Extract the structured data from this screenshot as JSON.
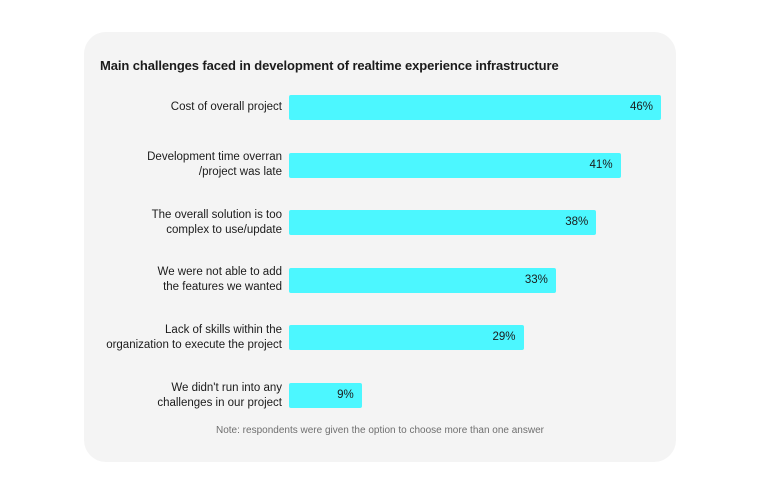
{
  "chart_data": {
    "type": "bar",
    "orientation": "horizontal",
    "title": "Main challenges faced in development of realtime experience infrastructure",
    "categories": [
      "Cost of overall project",
      "Development time overran\n/project was late",
      "The overall solution is too\ncomplex to use/update",
      "We were not able to add\nthe features we wanted",
      "Lack of skills within the\norganization to execute the project",
      "We didn't run into any\nchallenges in our project"
    ],
    "values": [
      46,
      41,
      38,
      33,
      29,
      9
    ],
    "value_labels": [
      "46%",
      "41%",
      "38%",
      "33%",
      "29%",
      "9%"
    ],
    "xlim": [
      0,
      46
    ],
    "xlabel": "",
    "ylabel": "",
    "bar_color": "#4cf7ff",
    "note": "Note: respondents were given the option to choose more than one answer"
  }
}
